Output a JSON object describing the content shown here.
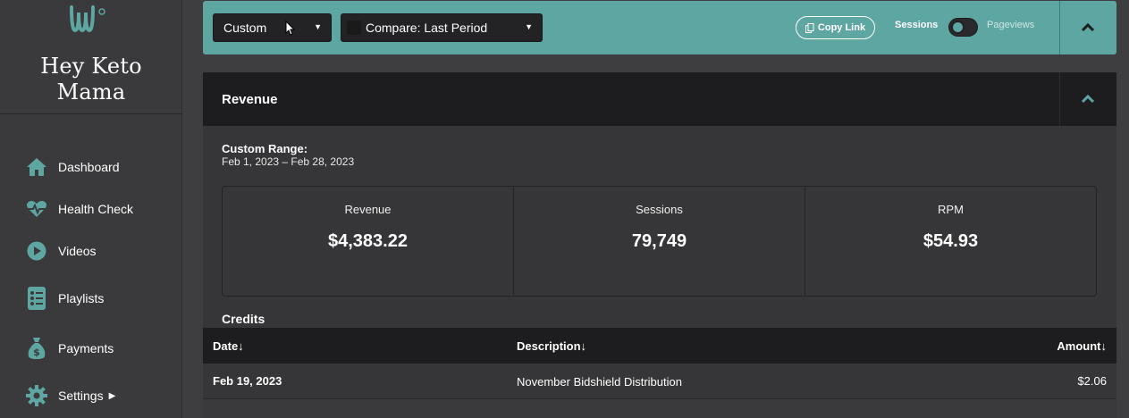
{
  "sidebar": {
    "brand": "Hey Keto Mama",
    "items": [
      {
        "label": "Dashboard"
      },
      {
        "label": "Health Check"
      },
      {
        "label": "Videos"
      },
      {
        "label": "Playlists"
      },
      {
        "label": "Payments"
      },
      {
        "label": "Settings"
      }
    ]
  },
  "toolbar": {
    "date_select": "Custom",
    "compare_select": "Compare: Last Period",
    "copy_link": "Copy Link",
    "toggle_left": "Sessions",
    "toggle_right": "Pageviews"
  },
  "panel": {
    "title": "Revenue",
    "range_label": "Custom Range:",
    "range_value": "Feb 1, 2023 – Feb 28, 2023",
    "stats": [
      {
        "label": "Revenue",
        "value": "$4,383.22"
      },
      {
        "label": "Sessions",
        "value": "79,749"
      },
      {
        "label": "RPM",
        "value": "$54.93"
      }
    ],
    "credits_title": "Credits",
    "table": {
      "headers": {
        "date": "Date↓",
        "description": "Description↓",
        "amount": "Amount↓"
      },
      "rows": [
        {
          "date": "Feb 19, 2023",
          "description": "November Bidshield Distribution",
          "amount": "$2.06"
        }
      ]
    }
  },
  "colors": {
    "accent": "#5ea6a2",
    "dark": "#1d1c1e"
  }
}
